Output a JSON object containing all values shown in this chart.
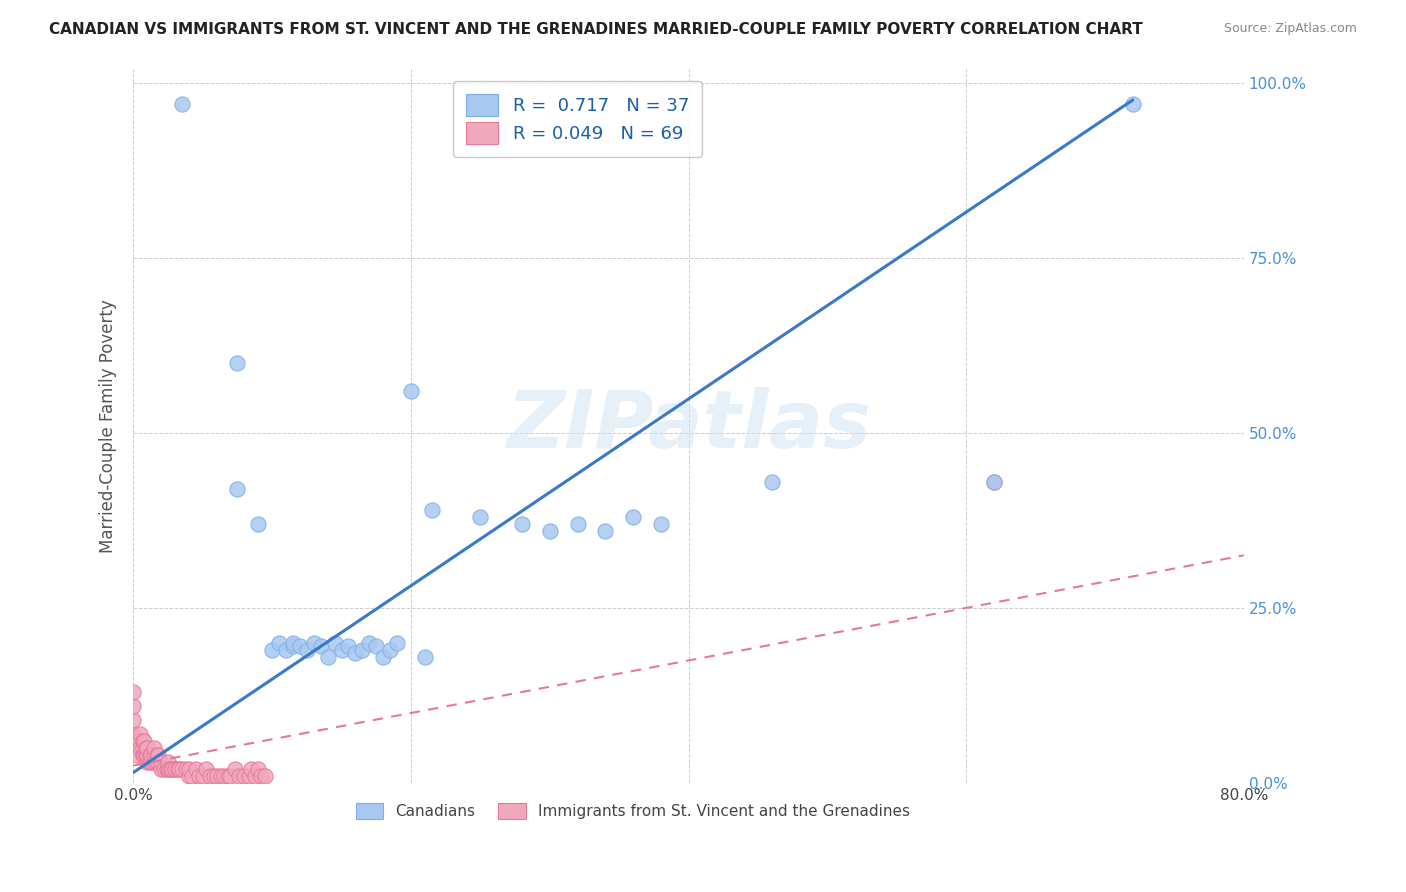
{
  "title": "CANADIAN VS IMMIGRANTS FROM ST. VINCENT AND THE GRENADINES MARRIED-COUPLE FAMILY POVERTY CORRELATION CHART",
  "source": "Source: ZipAtlas.com",
  "ylabel": "Married-Couple Family Poverty",
  "xlim": [
    0.0,
    0.8
  ],
  "ylim": [
    0.0,
    1.0
  ],
  "canadian_color": "#a8c8f0",
  "canadian_edge_color": "#7eb0e8",
  "immigrant_color": "#f0a8bc",
  "immigrant_edge_color": "#e87898",
  "canadian_line_color": "#3a78c8",
  "immigrant_line_color": "#e87898",
  "R_canadian": 0.717,
  "N_canadian": 37,
  "R_immigrant": 0.049,
  "N_immigrant": 69,
  "watermark": "ZIPatlas",
  "legend_canadians": "Canadians",
  "legend_immigrants": "Immigrants from St. Vincent and the Grenadines",
  "background_color": "#ffffff",
  "grid_color": "#cccccc",
  "ytick_color": "#4a90d9",
  "can_x": [
    0.035,
    0.075,
    0.075,
    0.09,
    0.1,
    0.105,
    0.11,
    0.115,
    0.115,
    0.12,
    0.125,
    0.13,
    0.135,
    0.14,
    0.145,
    0.15,
    0.155,
    0.16,
    0.165,
    0.17,
    0.175,
    0.18,
    0.185,
    0.19,
    0.2,
    0.21,
    0.215,
    0.25,
    0.28,
    0.3,
    0.32,
    0.34,
    0.36,
    0.38,
    0.46,
    0.62,
    0.72
  ],
  "can_y": [
    0.97,
    0.6,
    0.42,
    0.37,
    0.19,
    0.2,
    0.19,
    0.195,
    0.2,
    0.195,
    0.19,
    0.2,
    0.195,
    0.18,
    0.2,
    0.19,
    0.195,
    0.185,
    0.19,
    0.2,
    0.195,
    0.18,
    0.19,
    0.2,
    0.56,
    0.18,
    0.39,
    0.38,
    0.37,
    0.36,
    0.37,
    0.36,
    0.38,
    0.37,
    0.43,
    0.43,
    0.97
  ],
  "imm_x": [
    0.0,
    0.0,
    0.0,
    0.0,
    0.0,
    0.003,
    0.003,
    0.005,
    0.005,
    0.007,
    0.007,
    0.007,
    0.008,
    0.008,
    0.009,
    0.009,
    0.01,
    0.01,
    0.01,
    0.012,
    0.012,
    0.013,
    0.013,
    0.015,
    0.015,
    0.015,
    0.016,
    0.017,
    0.018,
    0.018,
    0.02,
    0.02,
    0.022,
    0.024,
    0.025,
    0.025,
    0.026,
    0.027,
    0.028,
    0.03,
    0.03,
    0.032,
    0.033,
    0.035,
    0.038,
    0.04,
    0.04,
    0.042,
    0.045,
    0.047,
    0.05,
    0.052,
    0.055,
    0.058,
    0.06,
    0.063,
    0.065,
    0.068,
    0.07,
    0.073,
    0.076,
    0.08,
    0.083,
    0.085,
    0.088,
    0.09,
    0.092,
    0.095,
    0.62
  ],
  "imm_y": [
    0.05,
    0.07,
    0.09,
    0.11,
    0.13,
    0.04,
    0.06,
    0.05,
    0.07,
    0.04,
    0.05,
    0.06,
    0.04,
    0.06,
    0.04,
    0.05,
    0.03,
    0.04,
    0.05,
    0.03,
    0.04,
    0.03,
    0.04,
    0.03,
    0.04,
    0.05,
    0.03,
    0.04,
    0.03,
    0.04,
    0.02,
    0.03,
    0.02,
    0.02,
    0.02,
    0.03,
    0.02,
    0.02,
    0.02,
    0.02,
    0.02,
    0.02,
    0.02,
    0.02,
    0.02,
    0.01,
    0.02,
    0.01,
    0.02,
    0.01,
    0.01,
    0.02,
    0.01,
    0.01,
    0.01,
    0.01,
    0.01,
    0.01,
    0.01,
    0.02,
    0.01,
    0.01,
    0.01,
    0.02,
    0.01,
    0.02,
    0.01,
    0.01,
    0.43
  ],
  "can_line_x0": 0.0,
  "can_line_y0": 0.015,
  "can_line_x1": 0.72,
  "can_line_y1": 0.975,
  "imm_line_x0": 0.0,
  "imm_line_y0": 0.025,
  "imm_line_x1": 0.8,
  "imm_line_y1": 0.325
}
